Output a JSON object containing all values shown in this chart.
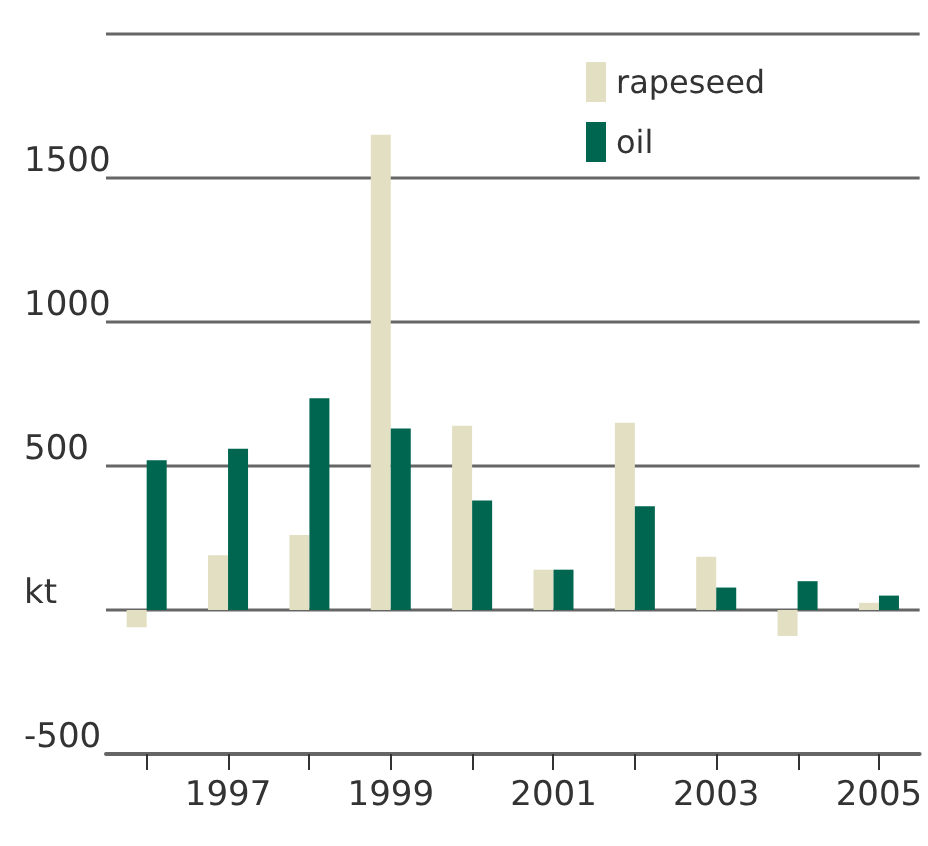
{
  "chart_data": {
    "type": "bar",
    "categories": [
      null,
      "1997",
      null,
      "1999",
      null,
      "2001",
      null,
      "2003",
      null,
      "2005"
    ],
    "series": [
      {
        "name": "rapeseed",
        "color": "#e3dfc2",
        "values": [
          -60,
          190,
          260,
          1650,
          640,
          140,
          650,
          185,
          -90,
          25
        ]
      },
      {
        "name": "oil",
        "color": "#006650",
        "values": [
          520,
          560,
          735,
          630,
          380,
          140,
          360,
          78,
          100,
          50
        ]
      }
    ],
    "ylim": [
      -500,
      2000
    ],
    "yticks": [
      -500,
      {
        "value": 0,
        "label": "kt"
      },
      500,
      1000,
      1500,
      {
        "value": 2000,
        "label": null
      }
    ],
    "grid": "y",
    "legend": "top right"
  }
}
